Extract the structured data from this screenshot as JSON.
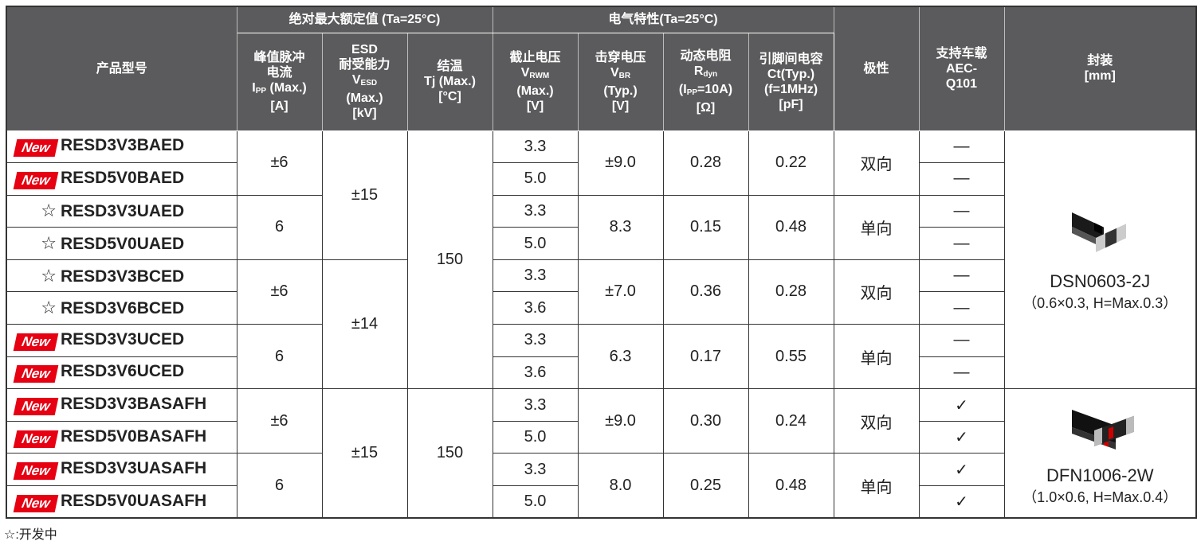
{
  "header": {
    "model": [
      "产品型号"
    ],
    "abs_max": "绝对最大额定值 (Ta=25°C)",
    "electrical": "电气特性(Ta=25°C)",
    "columns": [
      [
        "峰值脉冲",
        "电流",
        {
          "text": "I",
          "sub": "PP",
          "after": " (Max.)"
        },
        "[A]"
      ],
      [
        "ESD",
        "耐受能力",
        {
          "text": "V",
          "sub": "ESD"
        },
        "(Max.)",
        "[kV]"
      ],
      [
        "结温",
        "Tj (Max.)",
        "[°C]"
      ],
      [
        "截止电压",
        {
          "text": "V",
          "sub": "RWM"
        },
        "(Max.)",
        "[V]"
      ],
      [
        "击穿电压",
        {
          "text": "V",
          "sub": "BR"
        },
        "(Typ.)",
        "[V]"
      ],
      [
        "动态电阻",
        {
          "text": "R",
          "sub": "dyn"
        },
        {
          "text": "(I",
          "sub": "PP",
          "after": "=10A)"
        },
        "[Ω]"
      ],
      [
        "引脚间电容",
        "Ct(Typ.)",
        "(f=1MHz)",
        "[pF]"
      ]
    ],
    "polarity": [
      "极性"
    ],
    "aec": [
      "支持车载",
      "AEC-",
      "Q101"
    ],
    "package": [
      "封装",
      "[mm]"
    ]
  },
  "rows": [
    {
      "mark": "New",
      "model": "RESD3V3BAED",
      "vrwm": "3.3",
      "aec": "—"
    },
    {
      "mark": "New",
      "model": "RESD5V0BAED",
      "vrwm": "5.0",
      "aec": "—"
    },
    {
      "mark": "☆",
      "model": "RESD3V3UAED",
      "vrwm": "3.3",
      "aec": "—"
    },
    {
      "mark": "☆",
      "model": "RESD5V0UAED",
      "vrwm": "5.0",
      "aec": "—"
    },
    {
      "mark": "☆",
      "model": "RESD3V3BCED",
      "vrwm": "3.3",
      "aec": "—"
    },
    {
      "mark": "☆",
      "model": "RESD3V6BCED",
      "vrwm": "3.6",
      "aec": "—"
    },
    {
      "mark": "New",
      "model": "RESD3V3UCED",
      "vrwm": "3.3",
      "aec": "—"
    },
    {
      "mark": "New",
      "model": "RESD3V6UCED",
      "vrwm": "3.6",
      "aec": "—"
    },
    {
      "mark": "New",
      "model": "RESD3V3BASAFH",
      "vrwm": "3.3",
      "aec": "✓"
    },
    {
      "mark": "New",
      "model": "RESD5V0BASAFH",
      "vrwm": "5.0",
      "aec": "✓"
    },
    {
      "mark": "New",
      "model": "RESD3V3UASAFH",
      "vrwm": "3.3",
      "aec": "✓"
    },
    {
      "mark": "New",
      "model": "RESD5V0UASAFH",
      "vrwm": "5.0",
      "aec": "✓"
    }
  ],
  "pairs": [
    {
      "ipp": "±6",
      "vbr": "±9.0",
      "rdyn": "0.28",
      "ct": "0.22",
      "polarity": "双向"
    },
    {
      "ipp": "6",
      "vbr": "8.3",
      "rdyn": "0.15",
      "ct": "0.48",
      "polarity": "单向"
    },
    {
      "ipp": "±6",
      "vbr": "±7.0",
      "rdyn": "0.36",
      "ct": "0.28",
      "polarity": "双向"
    },
    {
      "ipp": "6",
      "vbr": "6.3",
      "rdyn": "0.17",
      "ct": "0.55",
      "polarity": "单向"
    },
    {
      "ipp": "±6",
      "vbr": "±9.0",
      "rdyn": "0.30",
      "ct": "0.24",
      "polarity": "双向"
    },
    {
      "ipp": "6",
      "vbr": "8.0",
      "rdyn": "0.25",
      "ct": "0.48",
      "polarity": "单向"
    }
  ],
  "esd": [
    "±15",
    "±14",
    "±15"
  ],
  "tj": [
    "150",
    "150"
  ],
  "packages": [
    {
      "name": "DSN0603-2J",
      "dims": "（0.6×0.3, H=Max.0.3）"
    },
    {
      "name": "DFN1006-2W",
      "dims": "（1.0×0.6, H=Max.0.4）"
    }
  ],
  "footnote": "☆:开发中"
}
